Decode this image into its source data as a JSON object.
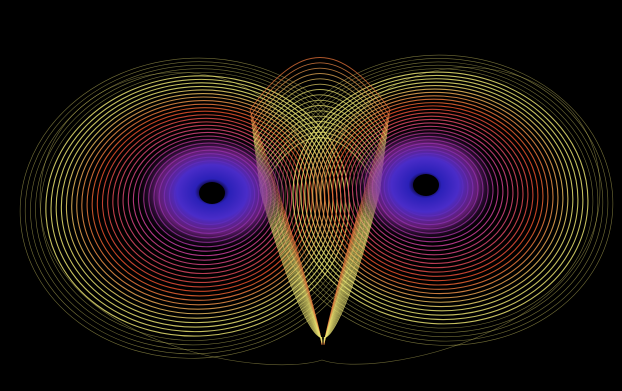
{
  "image": {
    "subject": "lorenz-attractor",
    "background_color": "#000000",
    "palette": {
      "outer": "#e8e070",
      "middle": "#e85028",
      "inner": "#c83cb4",
      "core": "#3c28c8",
      "eye": "#000000"
    }
  }
}
